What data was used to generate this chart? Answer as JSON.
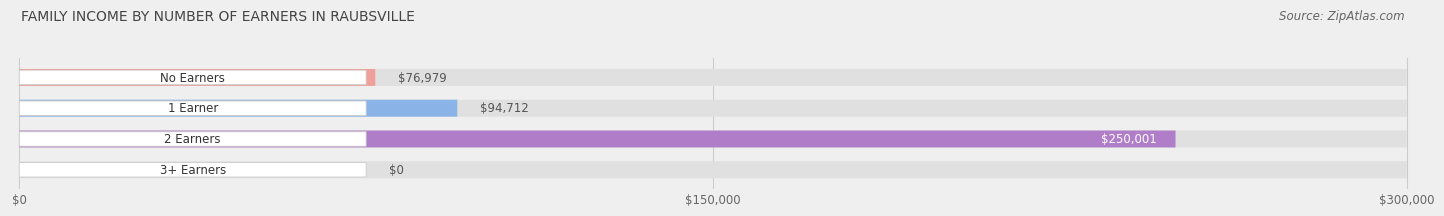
{
  "title": "FAMILY INCOME BY NUMBER OF EARNERS IN RAUBSVILLE",
  "source": "Source: ZipAtlas.com",
  "categories": [
    "No Earners",
    "1 Earner",
    "2 Earners",
    "3+ Earners"
  ],
  "values": [
    76979,
    94712,
    250001,
    0
  ],
  "bar_colors": [
    "#f0a09a",
    "#8ab4e8",
    "#b07ec8",
    "#6ecece"
  ],
  "bar_labels": [
    "$76,979",
    "$94,712",
    "$250,001",
    "$0"
  ],
  "label_inside": [
    false,
    false,
    true,
    false
  ],
  "xlim_max": 300000,
  "xticks": [
    0,
    150000,
    300000
  ],
  "xtick_labels": [
    "$0",
    "$150,000",
    "$300,000"
  ],
  "background_color": "#efefef",
  "bar_bg_color": "#e0e0e0",
  "title_fontsize": 10,
  "source_fontsize": 8.5,
  "bar_height": 0.55,
  "small_val_threshold": 15000
}
